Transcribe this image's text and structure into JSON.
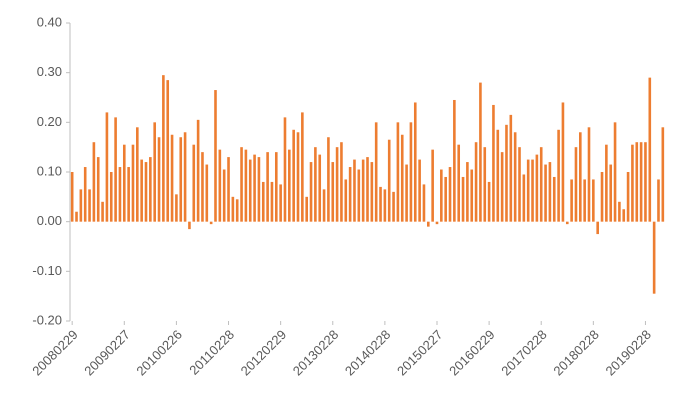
{
  "chart_data": {
    "type": "bar",
    "color": "#ED7D31",
    "categories": [
      "20080229",
      null,
      null,
      null,
      null,
      null,
      null,
      null,
      null,
      null,
      null,
      null,
      "20090227",
      null,
      null,
      null,
      null,
      null,
      null,
      null,
      null,
      null,
      null,
      null,
      "20100226",
      null,
      null,
      null,
      null,
      null,
      null,
      null,
      null,
      null,
      null,
      null,
      "20110228",
      null,
      null,
      null,
      null,
      null,
      null,
      null,
      null,
      null,
      null,
      null,
      "20120229",
      null,
      null,
      null,
      null,
      null,
      null,
      null,
      null,
      null,
      null,
      null,
      "20130228",
      null,
      null,
      null,
      null,
      null,
      null,
      null,
      null,
      null,
      null,
      null,
      "20140228",
      null,
      null,
      null,
      null,
      null,
      null,
      null,
      null,
      null,
      null,
      null,
      "20150227",
      null,
      null,
      null,
      null,
      null,
      null,
      null,
      null,
      null,
      null,
      null,
      "20160229",
      null,
      null,
      null,
      null,
      null,
      null,
      null,
      null,
      null,
      null,
      null,
      "20170228",
      null,
      null,
      null,
      null,
      null,
      null,
      null,
      null,
      null,
      null,
      null,
      "20180228",
      null,
      null,
      null,
      null,
      null,
      null,
      null,
      null,
      null,
      null,
      null,
      "20190228",
      null,
      null,
      null,
      null
    ],
    "values": [
      0.1,
      0.02,
      0.065,
      0.11,
      0.065,
      0.16,
      0.13,
      0.04,
      0.22,
      0.1,
      0.21,
      0.11,
      0.155,
      0.11,
      0.155,
      0.19,
      0.125,
      0.12,
      0.13,
      0.2,
      0.17,
      0.295,
      0.285,
      0.175,
      0.055,
      0.17,
      0.18,
      -0.015,
      0.155,
      0.205,
      0.14,
      0.115,
      -0.005,
      0.265,
      0.145,
      0.105,
      0.13,
      0.05,
      0.045,
      0.15,
      0.145,
      0.125,
      0.135,
      0.13,
      0.08,
      0.14,
      0.08,
      0.14,
      0.075,
      0.21,
      0.145,
      0.185,
      0.18,
      0.22,
      0.05,
      0.12,
      0.15,
      0.135,
      0.065,
      0.17,
      0.12,
      0.15,
      0.16,
      0.085,
      0.11,
      0.125,
      0.105,
      0.125,
      0.13,
      0.12,
      0.2,
      0.07,
      0.065,
      0.165,
      0.06,
      0.2,
      0.175,
      0.115,
      0.2,
      0.24,
      0.125,
      0.075,
      -0.01,
      0.145,
      -0.005,
      0.105,
      0.09,
      0.11,
      0.245,
      0.155,
      0.09,
      0.12,
      0.105,
      0.16,
      0.28,
      0.15,
      0.08,
      0.235,
      0.185,
      0.14,
      0.195,
      0.215,
      0.18,
      0.15,
      0.095,
      0.125,
      0.125,
      0.135,
      0.15,
      0.115,
      0.12,
      0.09,
      0.185,
      0.24,
      -0.005,
      0.085,
      0.15,
      0.18,
      0.085,
      0.19,
      0.085,
      -0.025,
      0.1,
      0.155,
      0.115,
      0.2,
      0.04,
      0.025,
      0.1,
      0.155,
      0.16,
      0.16,
      0.16,
      0.29,
      -0.145,
      0.085,
      0.19
    ],
    "ylim": [
      -0.2,
      0.4
    ],
    "yticks": [
      {
        "value": -0.2,
        "label": "-0.20"
      },
      {
        "value": -0.1,
        "label": "-0.10"
      },
      {
        "value": 0,
        "label": "0.00"
      },
      {
        "value": 0.1,
        "label": "0.10"
      },
      {
        "value": 0.2,
        "label": "0.20"
      },
      {
        "value": 0.3,
        "label": "0.30"
      },
      {
        "value": 0.4,
        "label": "0.40"
      }
    ],
    "grid": false
  }
}
